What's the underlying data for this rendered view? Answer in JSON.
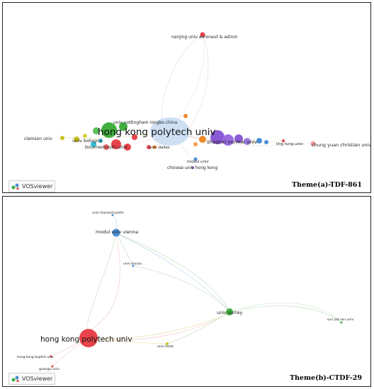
{
  "theme_a": {
    "title": "Theme(a)-TDF-861",
    "logo_text": "VOSviewer",
    "labels": {
      "hk": "hong kong polytech univ",
      "nanjing": "nanjing univ aeronaut & astron",
      "nottingham": "univ nottingham ningbo china",
      "clemson": "clemson univ",
      "bologna": "univ bologna",
      "bournemouth": "bournemouth univ",
      "dallas": "univ dallas",
      "shaanxi": "shaanxi normal univ",
      "ling_tung": "ling tung univ",
      "chung_yuan": "chung yuan christian univ",
      "modul": "modul univ",
      "chinese_hk": "chinese univ hong kong"
    }
  },
  "theme_b": {
    "title": "Theme(b)-CTDF-29",
    "logo_text": "VOSviewer",
    "labels": {
      "massachusetts": "univ massachusetts",
      "modul_vienna": "modul univ vienna",
      "macau": "univ macau",
      "surrey": "univ surrey",
      "sun_yatsen": "sun yat sen univ",
      "hk": "hong kong polytech univ",
      "leeds": "univ leeds",
      "hk_baptist": "hong kong baptist univ",
      "guangxi": "guangxi univ"
    }
  },
  "colors": {
    "panel_border": "#222222",
    "red_cluster": "#e8434a",
    "green_cluster": "#3fae3f",
    "blue_cluster": "#4a8fd6",
    "purple_cluster": "#8a5bd6",
    "orange_cluster": "#f08a2a",
    "yellow_cluster": "#c9c21e",
    "cyan_cluster": "#35c0d8",
    "hk_a_node": "#cfe0f5"
  }
}
